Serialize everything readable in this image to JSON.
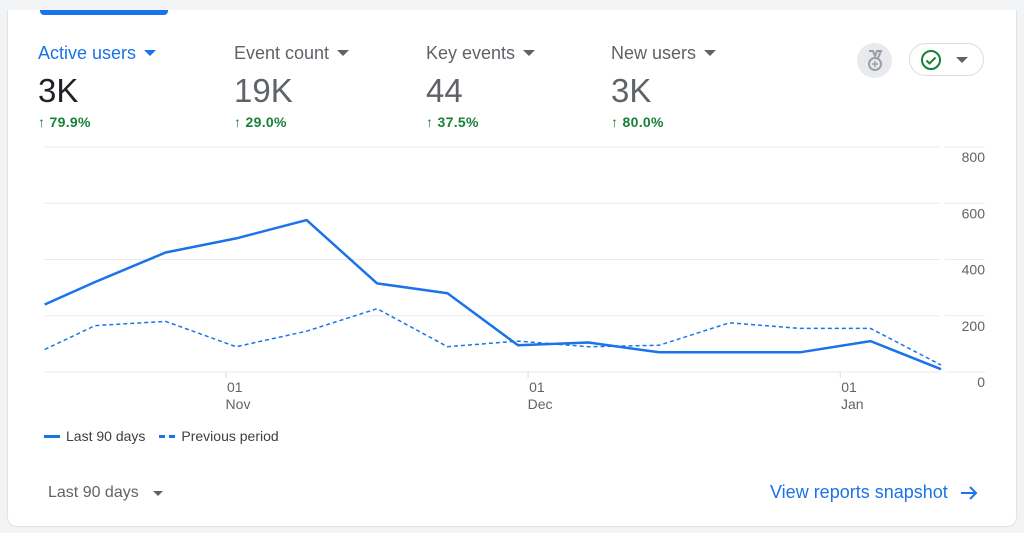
{
  "metrics": [
    {
      "label": "Active users",
      "value": "3K",
      "delta": "79.9%",
      "active": true
    },
    {
      "label": "Event count",
      "value": "19K",
      "delta": "29.0%"
    },
    {
      "label": "Key events",
      "value": "44",
      "delta": "37.5%"
    },
    {
      "label": "New users",
      "value": "3K",
      "delta": "80.0%"
    }
  ],
  "icons": {
    "medal": "medal-icon",
    "status": "check-circle-icon",
    "delta": "arrow-up-icon",
    "link": "arrow-right-icon"
  },
  "colors": {
    "accent": "#1a73e8",
    "positive": "#188038",
    "status": "#188038"
  },
  "chart_data": {
    "type": "line",
    "x": [
      "Oct 14",
      "Oct 19",
      "Oct 26",
      "Nov 2",
      "Nov 9",
      "Nov 16",
      "Nov 23",
      "Nov 30",
      "Dec 7",
      "Dec 14",
      "Dec 21",
      "Dec 28",
      "Jan 4",
      "Jan 11"
    ],
    "series": [
      {
        "name": "Last 90 days",
        "style": "solid",
        "values": [
          240,
          320,
          425,
          475,
          540,
          315,
          280,
          95,
          105,
          70,
          70,
          70,
          110,
          10
        ]
      },
      {
        "name": "Previous period",
        "style": "dashed",
        "values": [
          80,
          165,
          180,
          90,
          145,
          225,
          90,
          110,
          90,
          95,
          175,
          155,
          155,
          25
        ]
      }
    ],
    "ylim": [
      0,
      800
    ],
    "yticks": [
      "0",
      "200",
      "400",
      "600",
      "800"
    ],
    "xticks": [
      {
        "day": "01",
        "month": "Nov"
      },
      {
        "day": "01",
        "month": "Dec"
      },
      {
        "day": "01",
        "month": "Jan"
      }
    ],
    "grid": true,
    "legend": "bottom-left"
  },
  "legend": {
    "current": "Last 90 days",
    "previous": "Previous period"
  },
  "footer": {
    "range": "Last 90 days",
    "link": "View reports snapshot"
  }
}
